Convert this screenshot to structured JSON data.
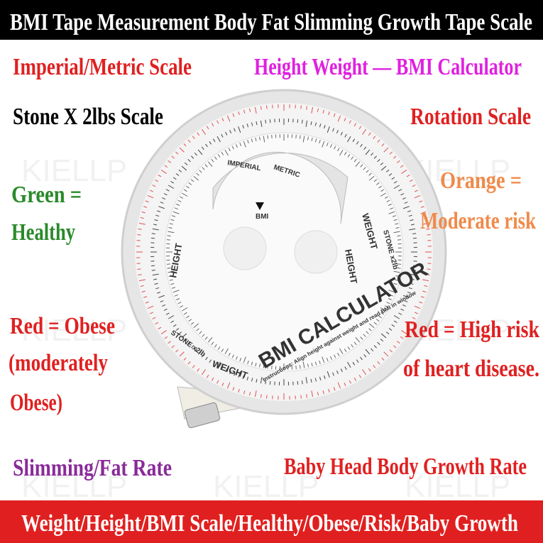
{
  "header": {
    "title": "BMI Tape Measurement Body Fat Slimming Growth Tape Scale"
  },
  "labels": {
    "imperial_metric": "Imperial/Metric Scale",
    "height_weight": "Height Weight — BMI Calculator",
    "stone": "Stone X 2lbs Scale",
    "rotation": "Rotation Scale",
    "green": [
      "Green =",
      "Healthy"
    ],
    "orange": [
      "Orange =",
      "Moderate risk"
    ],
    "red_obese": [
      "Red = Obese",
      "(moderately",
      "Obese)"
    ],
    "red_risk": [
      "Red = High risk",
      "of heart disease."
    ],
    "slimming": "Slimming/Fat Rate",
    "baby": "Baby Head Body Growth Rate"
  },
  "device": {
    "brand": "BMI CALCULATOR",
    "instructions": "Instructions: Align height against weight and read BMI in window",
    "weight": "WEIGHT",
    "height": "HEIGHT",
    "metric": "METRIC",
    "imperial": "IMPERIAL",
    "bmi": "BMI",
    "stone": "STONE x2lb"
  },
  "watermark": "KIELLP",
  "footer": {
    "text": "Weight/Height/BMI Scale/Healthy/Obese/Risk/Baby Growth"
  }
}
